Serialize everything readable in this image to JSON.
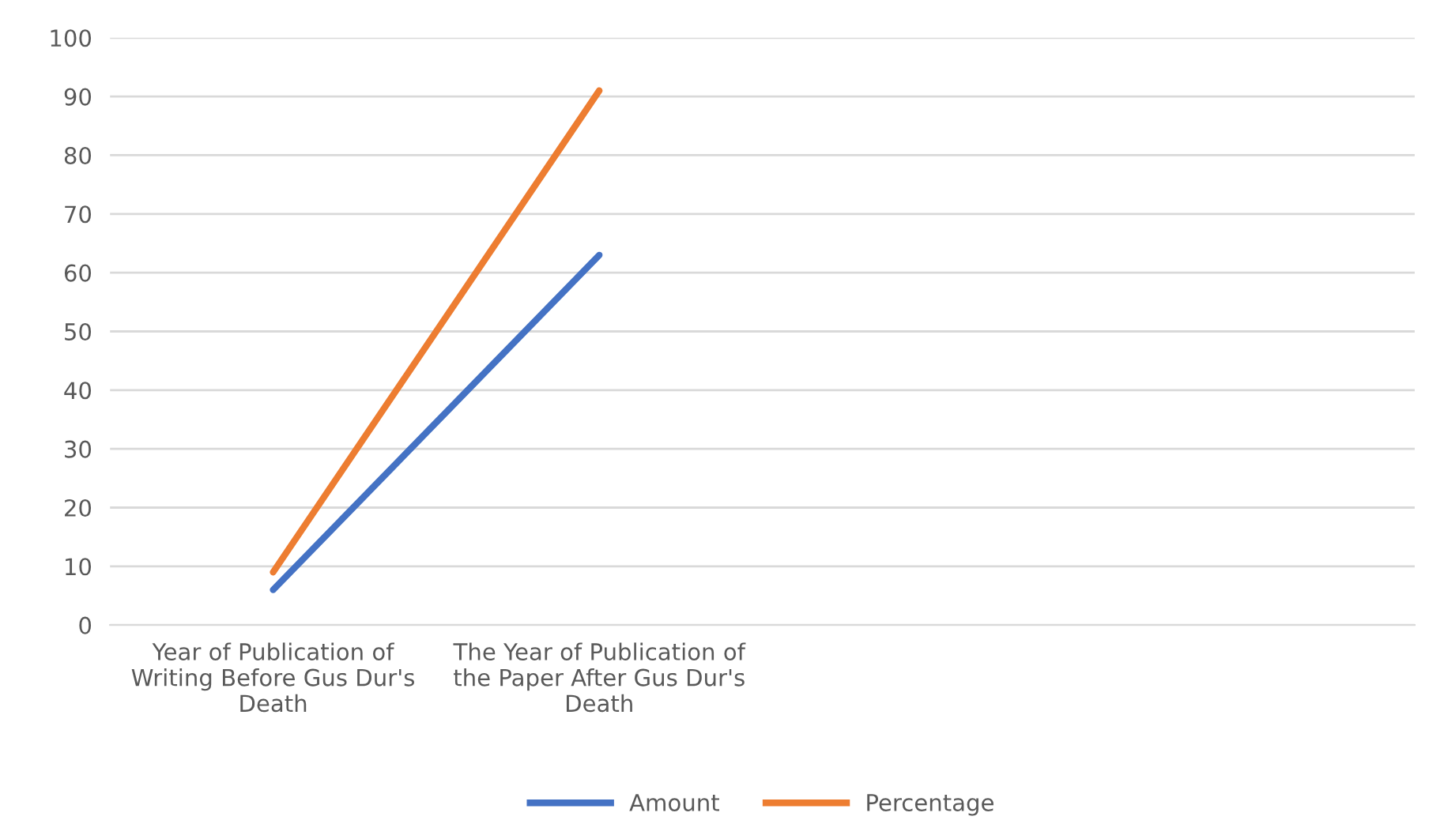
{
  "chart_data": {
    "type": "line",
    "categories": [
      "Year of Publication of\nWriting Before Gus Dur's\nDeath",
      "The Year of Publication of\nthe Paper After Gus Dur's\nDeath",
      null,
      null
    ],
    "series": [
      {
        "name": "Amount",
        "color": "#4472c4",
        "values": [
          6,
          63,
          null,
          null
        ]
      },
      {
        "name": "Percentage",
        "color": "#ed7d31",
        "values": [
          9,
          91,
          null,
          null
        ]
      }
    ],
    "ylim": [
      0,
      100
    ],
    "yticks": [
      0,
      10,
      20,
      30,
      40,
      50,
      60,
      70,
      80,
      90,
      100
    ],
    "grid": "y",
    "legend": "bottom",
    "marker": "none",
    "line_style": "solid"
  }
}
